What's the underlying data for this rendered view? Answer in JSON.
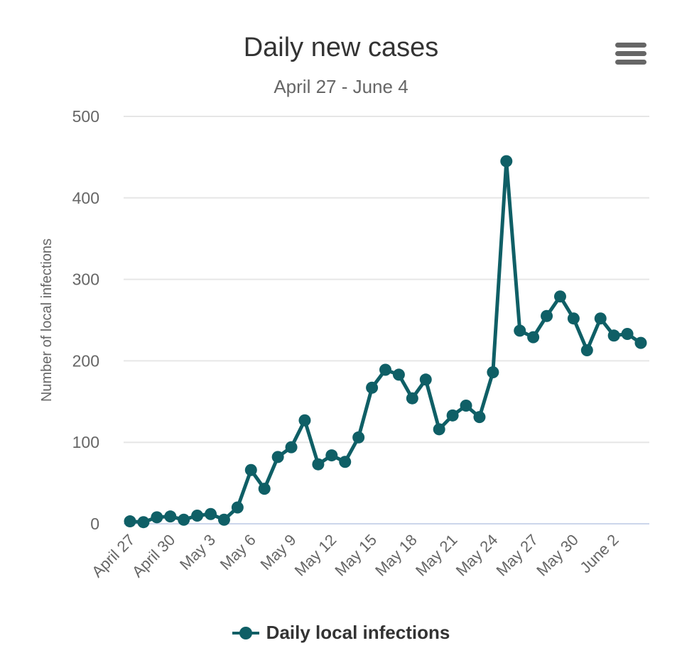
{
  "chart_data": {
    "type": "line",
    "title": "Daily new cases",
    "subtitle": "April 27 - June 4",
    "xlabel": "",
    "ylabel": "Number of local infections",
    "ylim": [
      0,
      500
    ],
    "yticks": [
      0,
      100,
      200,
      300,
      400,
      500
    ],
    "grid": true,
    "legend_position": "bottom-center",
    "x": [
      "April 27",
      "April 28",
      "April 29",
      "April 30",
      "May 1",
      "May 2",
      "May 3",
      "May 4",
      "May 5",
      "May 6",
      "May 7",
      "May 8",
      "May 9",
      "May 10",
      "May 11",
      "May 12",
      "May 13",
      "May 14",
      "May 15",
      "May 16",
      "May 17",
      "May 18",
      "May 19",
      "May 20",
      "May 21",
      "May 22",
      "May 23",
      "May 24",
      "May 25",
      "May 26",
      "May 27",
      "May 28",
      "May 29",
      "May 30",
      "May 31",
      "June 1",
      "June 2",
      "June 3",
      "June 4"
    ],
    "xtick_labels": [
      "April 27",
      "April 30",
      "May 3",
      "May 6",
      "May 9",
      "May 12",
      "May 15",
      "May 18",
      "May 21",
      "May 24",
      "May 27",
      "May 30",
      "June 2"
    ],
    "series": [
      {
        "name": "Daily local infections",
        "color": "#0f5f66",
        "values": [
          3,
          2,
          8,
          9,
          5,
          10,
          12,
          5,
          20,
          66,
          43,
          82,
          94,
          127,
          73,
          84,
          76,
          106,
          167,
          189,
          183,
          154,
          177,
          116,
          133,
          145,
          131,
          186,
          445,
          237,
          229,
          255,
          279,
          252,
          213,
          252,
          231,
          233,
          222
        ]
      }
    ]
  },
  "menu": {
    "icon": "hamburger-menu-icon"
  },
  "colors": {
    "series": "#0f5f66",
    "grid": "#e6e6e6",
    "axis": "#ccd6eb",
    "text": "#666666",
    "title": "#333333"
  }
}
